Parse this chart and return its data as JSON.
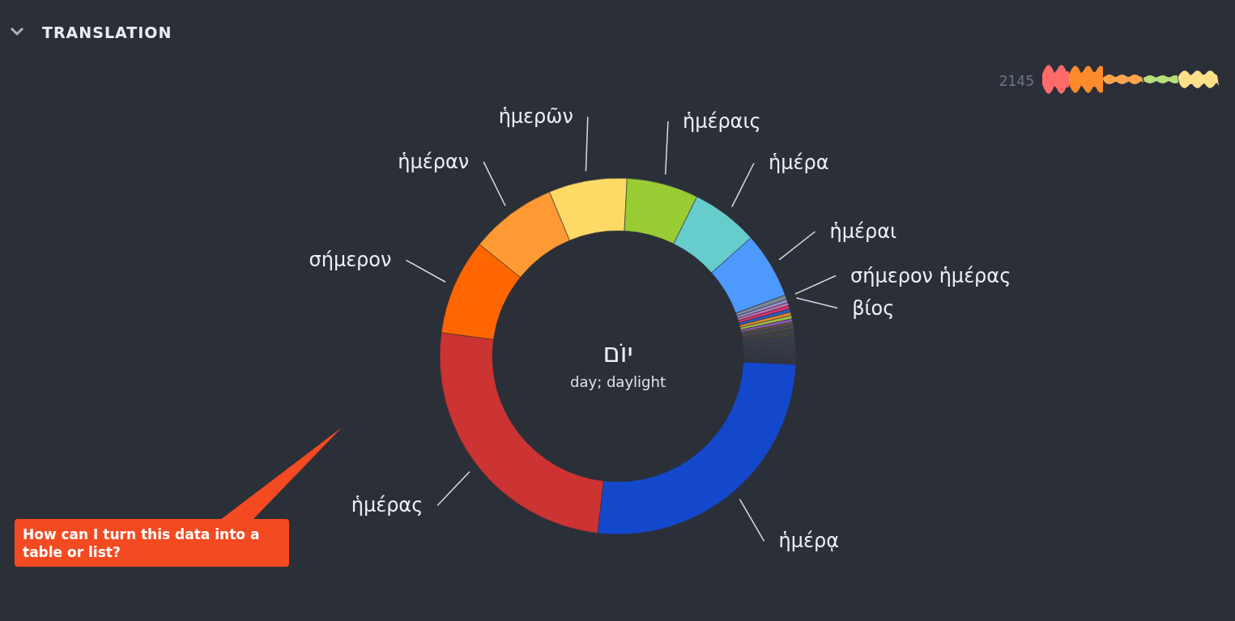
{
  "chart_data": {
    "type": "donut",
    "title": "TRANSLATION",
    "categories": [
      "ἡμέρᾳ",
      "ἡμέρας",
      "σήμερον",
      "ἡμέραν",
      "ἡμερῶν",
      "ἡμέραις",
      "ἡμέρα",
      "ἡμέραι",
      "σήμερον ἡμέρας",
      "βίος",
      null,
      null,
      null,
      null,
      null,
      null,
      null,
      null,
      null,
      null,
      null,
      null,
      null,
      null,
      null,
      null,
      null,
      null,
      null,
      null,
      null,
      null,
      null,
      null,
      null
    ],
    "values": [
      26.1,
      25.3,
      8.7,
      7.9,
      7.1,
      6.5,
      6.1,
      6.0,
      0.4,
      0.3,
      0.3,
      0.3,
      0.3,
      0.3,
      0.3,
      0.3,
      0.2,
      0.2,
      0.2,
      0.2,
      0.2,
      0.2,
      0.2,
      0.2,
      0.2,
      0.2,
      0.2,
      0.2,
      0.2,
      0.2,
      0.2,
      0.2,
      0.2,
      0.2,
      0.2
    ],
    "colors": [
      "#1448cc",
      "#cc3333",
      "#ff6600",
      "#ff9933",
      "#ffd966",
      "#99cc33",
      "#66cccc",
      "#4d99ff",
      "#7a8799",
      "#9b8fd0",
      "#c46fb0",
      "#e0306a",
      "#2a5cc8",
      "#e08a2a",
      "#a0c040",
      "#8a5ab0",
      "#6a5a40",
      "#5a4a60",
      "#4a5a50",
      "#5a4040",
      "#404a60",
      "#4a4a3a",
      "#3e4452",
      "#3e4452",
      "#3c4250",
      "#3c4250",
      "#3a404c",
      "#3a404c",
      "#383e4a",
      "#383e4a",
      "#363c48",
      "#363c48",
      "#343a46",
      "#343a46",
      "#323844"
    ],
    "annotations": [
      "יוֹם",
      "day; daylight",
      "2145",
      "How can I turn this data into a table or list?"
    ]
  }
}
